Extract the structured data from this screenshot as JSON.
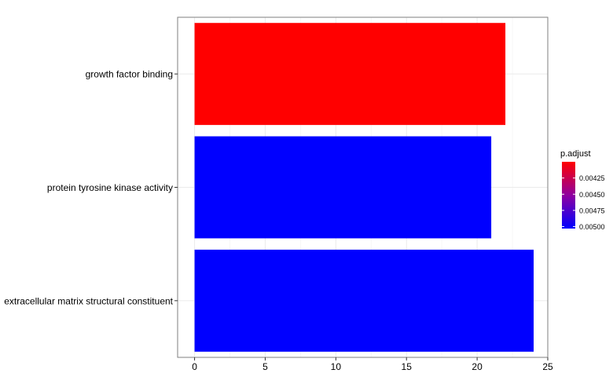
{
  "chart_data": {
    "type": "bar",
    "orientation": "horizontal",
    "categories": [
      "growth factor binding",
      "protein tyrosine kinase activity",
      "extracellular matrix structural constituent"
    ],
    "values": [
      22,
      21,
      24
    ],
    "p_adjust": [
      0.004,
      0.00503,
      0.00503
    ],
    "xlim": [
      -1.2,
      25
    ],
    "x_ticks": [
      0,
      5,
      10,
      15,
      20,
      25
    ],
    "x_tick_labels": [
      "0",
      "5",
      "10",
      "15",
      "20",
      "25"
    ],
    "xlabel": "",
    "ylabel": "",
    "grid": true,
    "legend": {
      "title": "p.adjust",
      "position": "right",
      "type": "colorbar",
      "range": [
        0.004,
        0.00503
      ],
      "ticks": [
        0.00425,
        0.0045,
        0.00475,
        0.005
      ],
      "tick_labels": [
        "0.00425",
        "0.00450",
        "0.00475",
        "0.00500"
      ],
      "color_low_value": "#FF0000",
      "color_high_value": "#0000FF"
    },
    "colors": {
      "panel_border": "#7f7f7f",
      "grid_major": "#ebebeb",
      "grid_minor": "#f5f5f5",
      "text": "#000000"
    }
  }
}
